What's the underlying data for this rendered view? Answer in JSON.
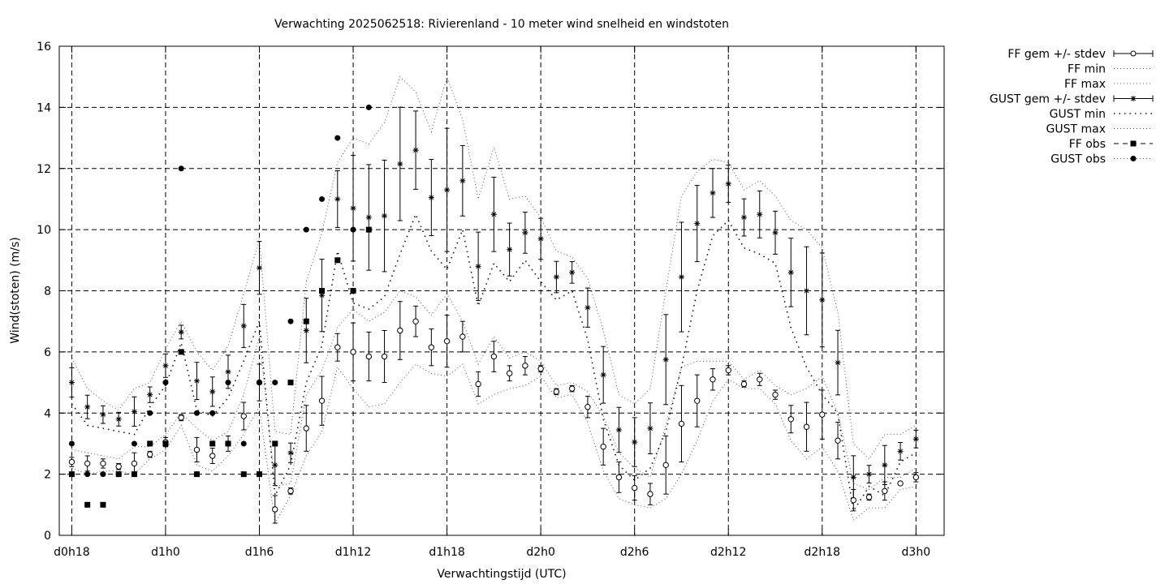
{
  "chart_data": {
    "type": "line",
    "title": "Verwachting 2025062518: Rivierenland - 10 meter wind snelheid en windstoten",
    "xlabel": "Verwachtingstijd (UTC)",
    "ylabel": "Wind(stoten) (m/s)",
    "ylim": [
      0,
      16
    ],
    "yticks": [
      0,
      2,
      4,
      6,
      8,
      10,
      12,
      14,
      16
    ],
    "xlim": [
      17.2,
      73.8
    ],
    "xticks": [
      {
        "x": 18,
        "label": "d0h18"
      },
      {
        "x": 24,
        "label": "d1h0"
      },
      {
        "x": 30,
        "label": "d1h6"
      },
      {
        "x": 36,
        "label": "d1h12"
      },
      {
        "x": 42,
        "label": "d1h18"
      },
      {
        "x": 48,
        "label": "d2h0"
      },
      {
        "x": 54,
        "label": "d2h6"
      },
      {
        "x": 60,
        "label": "d2h12"
      },
      {
        "x": 66,
        "label": "d2h18"
      },
      {
        "x": 72,
        "label": "d3h0"
      }
    ],
    "grid": true,
    "legend_position": "outside-top-right",
    "legend": [
      {
        "label": "FF gem +/- stdev",
        "style": "errorbar-circle"
      },
      {
        "label": "FF min",
        "style": "dotted"
      },
      {
        "label": "FF max",
        "style": "dotted"
      },
      {
        "label": "GUST gem +/- stdev",
        "style": "errorbar-star"
      },
      {
        "label": "GUST min",
        "style": "dotted-coarse"
      },
      {
        "label": "GUST max",
        "style": "dotted"
      },
      {
        "label": "FF obs",
        "style": "square-dashed"
      },
      {
        "label": "GUST obs",
        "style": "circle-dotted"
      }
    ],
    "series": [
      {
        "name": "FF gem +/- stdev",
        "x": [
          18,
          19,
          20,
          21,
          22,
          23,
          24,
          25,
          26,
          27,
          28,
          29,
          30,
          31,
          32,
          33,
          34,
          35,
          36,
          37,
          38,
          39,
          40,
          41,
          42,
          43,
          44,
          45,
          46,
          47,
          48,
          49,
          50,
          51,
          52,
          53,
          54,
          55,
          56,
          57,
          58,
          59,
          60,
          61,
          62,
          63,
          64,
          65,
          66,
          67,
          68,
          69,
          70,
          71,
          72
        ],
        "mean": [
          2.4,
          2.35,
          2.35,
          2.25,
          2.35,
          2.65,
          3.05,
          3.85,
          2.8,
          2.6,
          3.0,
          3.9,
          5.0,
          0.85,
          1.45,
          3.5,
          4.4,
          6.15,
          6.0,
          5.85,
          5.85,
          6.7,
          7.0,
          6.15,
          6.35,
          6.5,
          4.95,
          5.85,
          5.3,
          5.55,
          5.45,
          4.7,
          4.8,
          4.2,
          2.9,
          1.9,
          1.55,
          1.35,
          2.3,
          3.65,
          4.4,
          5.1,
          5.4,
          4.95,
          5.1,
          4.6,
          3.8,
          3.55,
          3.95,
          3.1,
          1.15,
          1.25,
          1.45,
          1.7,
          1.9
        ],
        "stdev": [
          0.15,
          0.25,
          0.15,
          0.1,
          0.35,
          0.1,
          0.15,
          0.1,
          0.4,
          0.25,
          0.25,
          0.45,
          0.6,
          0.45,
          0.1,
          0.75,
          0.8,
          0.45,
          0.95,
          0.8,
          0.85,
          0.95,
          0.5,
          0.6,
          0.85,
          0.5,
          0.4,
          0.5,
          0.25,
          0.3,
          0.1,
          0.1,
          0.1,
          0.35,
          0.6,
          0.5,
          0.4,
          0.35,
          0.95,
          1.25,
          0.85,
          0.35,
          0.15,
          0.1,
          0.2,
          0.15,
          0.45,
          0.8,
          0.8,
          0.6,
          0.35,
          0.1,
          0.3,
          0.05,
          0.15
        ]
      },
      {
        "name": "FF min",
        "x": [
          18,
          19,
          20,
          21,
          22,
          23,
          24,
          25,
          26,
          27,
          28,
          29,
          30,
          31,
          32,
          33,
          34,
          35,
          36,
          37,
          38,
          39,
          40,
          41,
          42,
          43,
          44,
          45,
          46,
          47,
          48,
          49,
          50,
          51,
          52,
          53,
          54,
          55,
          56,
          57,
          58,
          59,
          60,
          61,
          62,
          63,
          64,
          65,
          66,
          67,
          68,
          69,
          70,
          71,
          72
        ],
        "values": [
          2.2,
          2.0,
          2.1,
          2.1,
          2.0,
          2.5,
          2.8,
          3.6,
          2.3,
          2.1,
          2.6,
          3.3,
          4.2,
          0.4,
          1.3,
          2.6,
          3.4,
          5.5,
          4.8,
          4.2,
          4.3,
          5.0,
          5.6,
          5.3,
          5.2,
          5.6,
          4.3,
          4.6,
          4.8,
          4.9,
          5.2,
          4.5,
          4.6,
          3.7,
          2.1,
          1.2,
          1.0,
          0.9,
          1.2,
          2.0,
          3.1,
          4.4,
          5.1,
          4.8,
          4.8,
          4.3,
          3.1,
          2.5,
          2.9,
          2.1,
          0.5,
          0.9,
          0.9,
          1.5,
          1.6
        ]
      },
      {
        "name": "FF max",
        "x": [
          18,
          19,
          20,
          21,
          22,
          23,
          24,
          25,
          26,
          27,
          28,
          29,
          30,
          31,
          32,
          33,
          34,
          35,
          36,
          37,
          38,
          39,
          40,
          41,
          42,
          43,
          44,
          45,
          46,
          47,
          48,
          49,
          50,
          51,
          52,
          53,
          54,
          55,
          56,
          57,
          58,
          59,
          60,
          61,
          62,
          63,
          64,
          65,
          66,
          67,
          68,
          69,
          70,
          71,
          72
        ],
        "values": [
          2.8,
          2.7,
          2.6,
          2.5,
          2.9,
          2.9,
          3.3,
          4.0,
          3.5,
          3.1,
          3.4,
          4.6,
          6.5,
          1.6,
          1.7,
          4.6,
          5.4,
          6.8,
          7.4,
          7.0,
          7.3,
          8.0,
          7.8,
          7.2,
          7.9,
          7.0,
          5.6,
          6.5,
          5.8,
          6.0,
          5.7,
          4.9,
          5.0,
          4.7,
          3.9,
          2.7,
          2.2,
          1.9,
          3.6,
          5.5,
          5.7,
          5.7,
          5.7,
          5.1,
          5.4,
          4.9,
          4.6,
          4.8,
          5.2,
          4.0,
          1.7,
          1.5,
          1.9,
          1.9,
          2.2
        ]
      },
      {
        "name": "GUST gem +/- stdev",
        "x": [
          18,
          19,
          20,
          21,
          22,
          23,
          24,
          25,
          26,
          27,
          28,
          29,
          30,
          31,
          32,
          33,
          34,
          35,
          36,
          37,
          38,
          39,
          40,
          41,
          42,
          43,
          44,
          45,
          46,
          47,
          48,
          49,
          50,
          51,
          52,
          53,
          54,
          55,
          56,
          57,
          58,
          59,
          60,
          61,
          62,
          63,
          64,
          65,
          66,
          67,
          68,
          69,
          70,
          71,
          72
        ],
        "mean": [
          5.0,
          4.2,
          3.95,
          3.8,
          4.05,
          4.6,
          5.55,
          6.65,
          5.05,
          4.7,
          5.35,
          6.85,
          8.75,
          2.3,
          2.7,
          6.7,
          7.85,
          11.0,
          10.7,
          10.4,
          10.45,
          12.15,
          12.6,
          11.05,
          11.3,
          11.6,
          8.8,
          10.5,
          9.35,
          9.9,
          9.7,
          8.45,
          8.6,
          7.45,
          5.25,
          3.45,
          3.05,
          3.5,
          5.75,
          8.45,
          10.2,
          11.2,
          11.5,
          10.4,
          10.5,
          9.9,
          8.6,
          8.0,
          7.7,
          5.65,
          1.9,
          2.0,
          2.3,
          2.75,
          3.15
        ]
      },
      {
        "name": "GUST min",
        "x": [
          18,
          19,
          20,
          21,
          22,
          23,
          24,
          25,
          26,
          27,
          28,
          29,
          30,
          31,
          32,
          33,
          34,
          35,
          36,
          37,
          38,
          39,
          40,
          41,
          42,
          43,
          44,
          45,
          46,
          47,
          48,
          49,
          50,
          51,
          52,
          53,
          54,
          55,
          56,
          57,
          58,
          59,
          60,
          61,
          62,
          63,
          64,
          65,
          66,
          67,
          68,
          69,
          70,
          71,
          72
        ],
        "values": [
          4.3,
          3.6,
          3.5,
          3.4,
          3.3,
          4.2,
          4.9,
          6.3,
          4.1,
          3.9,
          4.5,
          5.7,
          7.0,
          1.3,
          2.3,
          5.0,
          6.2,
          9.3,
          7.6,
          7.4,
          7.8,
          9.2,
          10.5,
          9.3,
          8.7,
          10.0,
          7.5,
          8.9,
          8.3,
          9.0,
          8.3,
          7.7,
          8.0,
          6.4,
          3.8,
          2.3,
          1.8,
          2.2,
          3.4,
          5.5,
          8.0,
          9.8,
          10.3,
          9.4,
          9.2,
          8.9,
          6.8,
          5.5,
          4.6,
          4.0,
          0.8,
          1.6,
          1.3,
          2.4,
          2.7
        ]
      },
      {
        "name": "GUST max",
        "x": [
          18,
          19,
          20,
          21,
          22,
          23,
          24,
          25,
          26,
          27,
          28,
          29,
          30,
          31,
          32,
          33,
          34,
          35,
          36,
          37,
          38,
          39,
          40,
          41,
          42,
          43,
          44,
          45,
          46,
          47,
          48,
          49,
          50,
          51,
          52,
          53,
          54,
          55,
          56,
          57,
          58,
          59,
          60,
          61,
          62,
          63,
          64,
          65,
          66,
          67,
          68,
          69,
          70,
          71,
          72
        ],
        "values": [
          5.8,
          4.8,
          4.4,
          4.1,
          4.8,
          5.0,
          6.1,
          7.0,
          6.0,
          5.4,
          6.2,
          7.9,
          9.7,
          3.4,
          3.3,
          8.3,
          9.9,
          12.2,
          13.0,
          12.8,
          13.5,
          15.0,
          14.5,
          13.2,
          15.0,
          13.6,
          11.0,
          12.7,
          11.0,
          11.1,
          10.4,
          9.3,
          9.1,
          8.4,
          6.7,
          4.6,
          4.3,
          4.8,
          8.0,
          11.1,
          11.9,
          12.3,
          12.2,
          11.3,
          11.6,
          11.1,
          10.3,
          10.0,
          9.4,
          7.3,
          3.0,
          2.5,
          3.3,
          3.3,
          3.6
        ]
      },
      {
        "name": "FF obs",
        "x": [
          18,
          19,
          20,
          21,
          22,
          23,
          24,
          25,
          26,
          27,
          28,
          29,
          30,
          31,
          32,
          33,
          34,
          35,
          36,
          37
        ],
        "values": [
          2,
          1,
          1,
          2,
          2,
          3,
          3,
          6,
          2,
          3,
          3,
          2,
          2,
          3,
          5,
          7,
          8,
          9,
          8,
          10
        ]
      },
      {
        "name": "GUST obs",
        "x": [
          18,
          19,
          20,
          21,
          22,
          23,
          24,
          25,
          26,
          27,
          28,
          29,
          30,
          31,
          32,
          33,
          34,
          35,
          36,
          37
        ],
        "values": [
          3,
          2,
          2,
          2,
          3,
          4,
          5,
          12,
          4,
          4,
          5,
          3,
          5,
          5,
          7,
          10,
          11,
          13,
          10,
          14
        ]
      }
    ]
  }
}
